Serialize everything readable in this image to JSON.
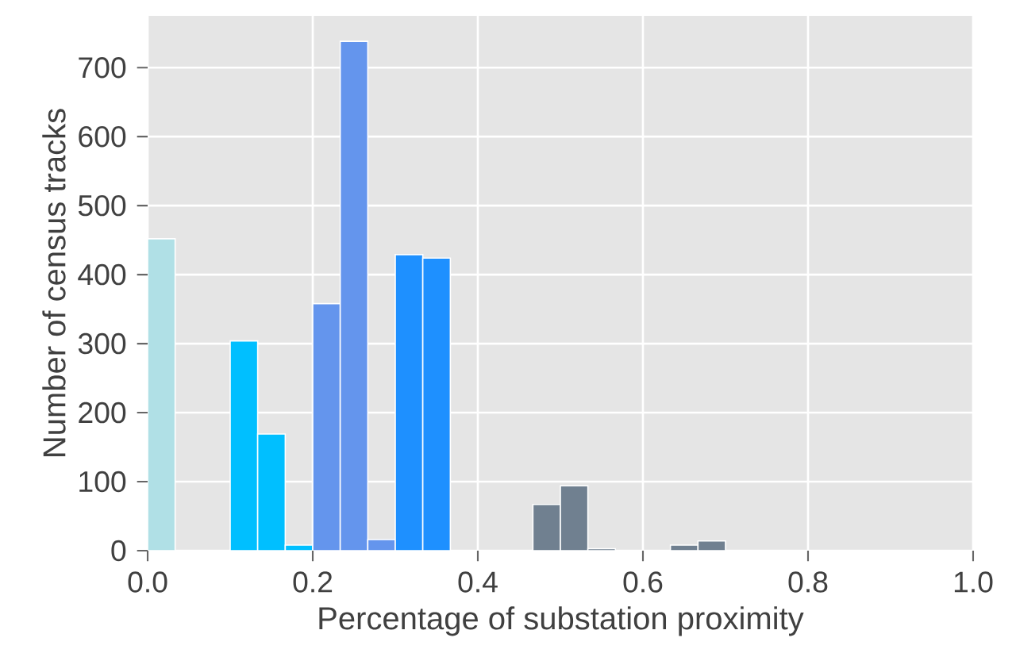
{
  "chart_data": {
    "type": "histogram",
    "xlabel": "Percentage of substation proximity",
    "ylabel": "Number of census tracks",
    "bins": [
      0,
      0.0333,
      0.0667,
      0.1,
      0.1333,
      0.1667,
      0.2,
      0.2333,
      0.2667,
      0.3,
      0.3333,
      0.3667,
      0.4,
      0.4333,
      0.4667,
      0.5,
      0.5333,
      0.5667,
      0.6,
      0.6333,
      0.6667,
      0.7
    ],
    "values": [
      452,
      0,
      0,
      304,
      169,
      8,
      358,
      738,
      16,
      429,
      424,
      0,
      0,
      0,
      67,
      94,
      3,
      0,
      0,
      8,
      14
    ],
    "colors": [
      "#b0e0e6",
      "#b0e0e6",
      "#00bfff",
      "#00bfff",
      "#00bfff",
      "#00bfff",
      "#6495ed",
      "#6495ed",
      "#6495ed",
      "#1e90ff",
      "#1e90ff",
      "#1e90ff",
      "#708090",
      "#708090",
      "#708090",
      "#708090",
      "#708090",
      "#708090",
      "#708090",
      "#708090",
      "#708090"
    ],
    "xlim": [
      0,
      1
    ],
    "ylim": [
      0,
      775
    ],
    "xticks": [
      {
        "value": 0,
        "label": "0.0"
      },
      {
        "value": 0.2,
        "label": "0.2"
      },
      {
        "value": 0.4,
        "label": "0.4"
      },
      {
        "value": 0.6,
        "label": "0.6"
      },
      {
        "value": 0.8,
        "label": "0.8"
      },
      {
        "value": 1,
        "label": "1.0"
      }
    ],
    "yticks": [
      0,
      100,
      200,
      300,
      400,
      500,
      600,
      700
    ],
    "grid": true
  }
}
